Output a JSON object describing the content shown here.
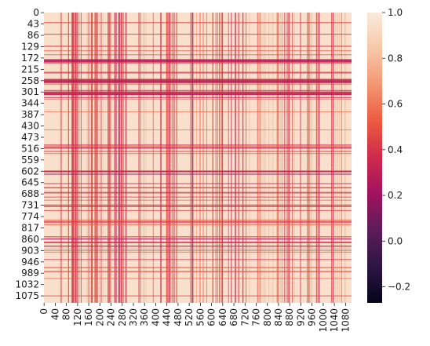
{
  "chart_data": {
    "type": "heatmap",
    "title": "",
    "xlabel": "",
    "ylabel": "",
    "n_rows": 1102,
    "n_cols": 1102,
    "x_tick_labels": [
      "0",
      "40",
      "80",
      "120",
      "160",
      "200",
      "240",
      "280",
      "320",
      "360",
      "400",
      "440",
      "480",
      "520",
      "560",
      "600",
      "640",
      "680",
      "720",
      "760",
      "800",
      "840",
      "880",
      "920",
      "960",
      "1000",
      "1040",
      "1080"
    ],
    "y_tick_labels": [
      "0",
      "43",
      "86",
      "129",
      "172",
      "215",
      "258",
      "301",
      "344",
      "387",
      "430",
      "473",
      "516",
      "559",
      "602",
      "645",
      "688",
      "731",
      "774",
      "817",
      "860",
      "903",
      "946",
      "989",
      "1032",
      "1075"
    ],
    "colorbar": {
      "min": -0.27,
      "max": 1.0,
      "tick_values": [
        -0.2,
        0.0,
        0.2,
        0.4,
        0.6,
        0.8,
        1.0
      ],
      "tick_labels": [
        "−0.2",
        "0.0",
        "0.2",
        "0.4",
        "0.6",
        "0.8",
        "1.0"
      ]
    },
    "colormap": "rocket",
    "colormap_stops": [
      "#03051a",
      "#2d1544",
      "#5c1d5a",
      "#a1125f",
      "#cf2a4c",
      "#ec5a3f",
      "#f39672",
      "#f6c8a8",
      "#faebdd"
    ],
    "dominant_value": 0.95,
    "typical_low_value": 0.4,
    "dense_low_column_bands": [
      [
        95,
        135
      ],
      [
        165,
        215
      ],
      [
        225,
        245
      ],
      [
        250,
        300
      ],
      [
        430,
        470
      ]
    ],
    "low_row_bands": [
      [
        175,
        190
      ],
      [
        250,
        265
      ],
      [
        300,
        310
      ],
      [
        600,
        612
      ],
      [
        640,
        648
      ],
      [
        855,
        870
      ]
    ]
  }
}
